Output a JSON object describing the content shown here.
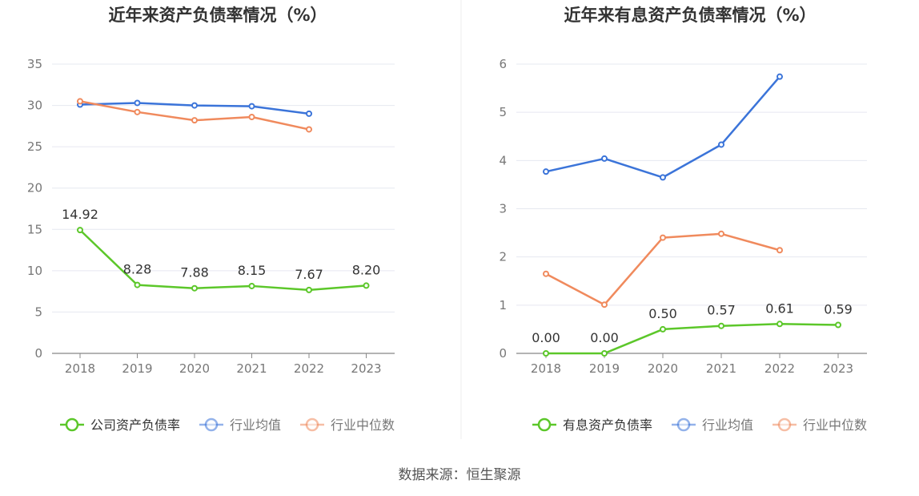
{
  "colors": {
    "company": "#5cc72a",
    "avg": "#3b74d9",
    "median": "#f08a5d",
    "grid": "#e6e8f0",
    "axis_text": "#777777",
    "title": "#333333"
  },
  "source_text": "数据来源：恒生聚源",
  "chart_data": [
    {
      "type": "line",
      "title": "近年来资产负债率情况（%）",
      "categories": [
        "2018",
        "2019",
        "2020",
        "2021",
        "2022",
        "2023"
      ],
      "ylim": [
        0,
        35
      ],
      "yticks": [
        0,
        5,
        10,
        15,
        20,
        25,
        30,
        35
      ],
      "grid": true,
      "legend_position": "bottom",
      "series": [
        {
          "name": "公司资产负债率",
          "color": "#5cc72a",
          "labels": [
            "14.92",
            "8.28",
            "7.88",
            "8.15",
            "7.67",
            "8.20"
          ],
          "values": [
            14.92,
            8.28,
            7.88,
            8.15,
            7.67,
            8.2
          ]
        },
        {
          "name": "行业均值",
          "color": "#3b74d9",
          "values": [
            30.1,
            30.3,
            30.0,
            29.9,
            29.0,
            null
          ]
        },
        {
          "name": "行业中位数",
          "color": "#f08a5d",
          "values": [
            30.5,
            29.2,
            28.2,
            28.6,
            27.1,
            null
          ]
        }
      ]
    },
    {
      "type": "line",
      "title": "近年来有息资产负债率情况（%）",
      "categories": [
        "2018",
        "2019",
        "2020",
        "2021",
        "2022",
        "2023"
      ],
      "ylim": [
        0,
        6
      ],
      "yticks": [
        0,
        1,
        2,
        3,
        4,
        5,
        6
      ],
      "grid": true,
      "legend_position": "bottom",
      "series": [
        {
          "name": "有息资产负债率",
          "color": "#5cc72a",
          "labels": [
            "0.00",
            "0.00",
            "0.50",
            "0.57",
            "0.61",
            "0.59"
          ],
          "values": [
            0.0,
            0.0,
            0.5,
            0.57,
            0.61,
            0.59
          ]
        },
        {
          "name": "行业均值",
          "color": "#3b74d9",
          "values": [
            3.77,
            4.04,
            3.65,
            4.33,
            5.74,
            null
          ]
        },
        {
          "name": "行业中位数",
          "color": "#f08a5d",
          "values": [
            1.65,
            1.01,
            2.4,
            2.48,
            2.14,
            null
          ]
        }
      ]
    }
  ]
}
